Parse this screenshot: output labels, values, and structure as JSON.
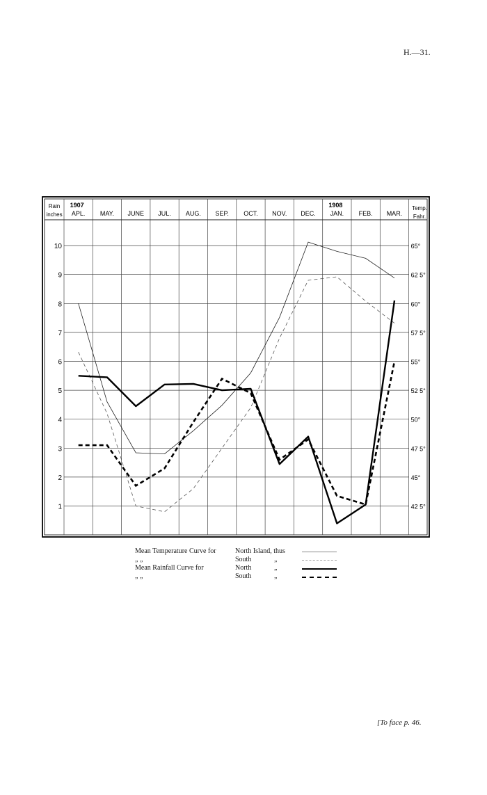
{
  "page_ref": "H.—31.",
  "face_note": "[To face p. 46.",
  "chart_data": {
    "type": "line",
    "year_labels": [
      "1907",
      "1908"
    ],
    "categories": [
      "APL.",
      "MAY.",
      "JUNE",
      "JUL.",
      "AUG.",
      "SEP.",
      "OCT.",
      "NOV.",
      "DEC.",
      "JAN.",
      "FEB.",
      "MAR."
    ],
    "left_axis": {
      "header": [
        "Rain",
        "inches"
      ],
      "ticks": [
        "1",
        "2",
        "3",
        "4",
        "5",
        "6",
        "7",
        "8",
        "9",
        "10"
      ],
      "ylim": [
        0.4,
        10.6
      ]
    },
    "right_axis": {
      "header": [
        "Temp.",
        "Fahr."
      ],
      "ticks": [
        "42 5°",
        "45°",
        "47 5°",
        "50°",
        "52 5°",
        "55°",
        "57 5°",
        "60°",
        "62 5°",
        "65°"
      ],
      "ylim": [
        40.5,
        66
      ]
    },
    "grid": true,
    "series": [
      {
        "style": "temperature-north",
        "axis": "right",
        "values": [
          60,
          51.5,
          47.1,
          47.0,
          49.0,
          51.2,
          54.0,
          58.8,
          65.3,
          64.5,
          63.9,
          62.2
        ]
      },
      {
        "style": "temperature-south",
        "axis": "right",
        "values": [
          55.8,
          50.5,
          42.5,
          42.0,
          44.0,
          47.5,
          51.0,
          57.0,
          62.0,
          62.3,
          60.2,
          58.3
        ]
      },
      {
        "style": "rainfall-north",
        "axis": "left",
        "values": [
          5.5,
          5.45,
          4.45,
          5.2,
          5.22,
          5.0,
          5.05,
          2.45,
          3.4,
          0.4,
          1.05,
          8.1
        ]
      },
      {
        "style": "rainfall-south",
        "axis": "left",
        "values": [
          3.1,
          3.1,
          1.7,
          2.3,
          3.9,
          5.4,
          4.9,
          2.6,
          3.3,
          1.35,
          1.05,
          6.0
        ]
      }
    ]
  },
  "legend": {
    "rows": [
      {
        "c1": "Mean Temperature Curve for",
        "c2": "North Island, thus",
        "c3": "",
        "sample_style": "temperature-north"
      },
      {
        "c1": "„                        „",
        "c2": "South",
        "c3": "„",
        "sample_style": "temperature-south"
      },
      {
        "c1": "Mean   Rainfall   Curve   for",
        "c2": "North",
        "c3": "„",
        "sample_style": "rainfall-north"
      },
      {
        "c1": "„                        „",
        "c2": "South",
        "c3": "„",
        "sample_style": "rainfall-south"
      }
    ]
  }
}
